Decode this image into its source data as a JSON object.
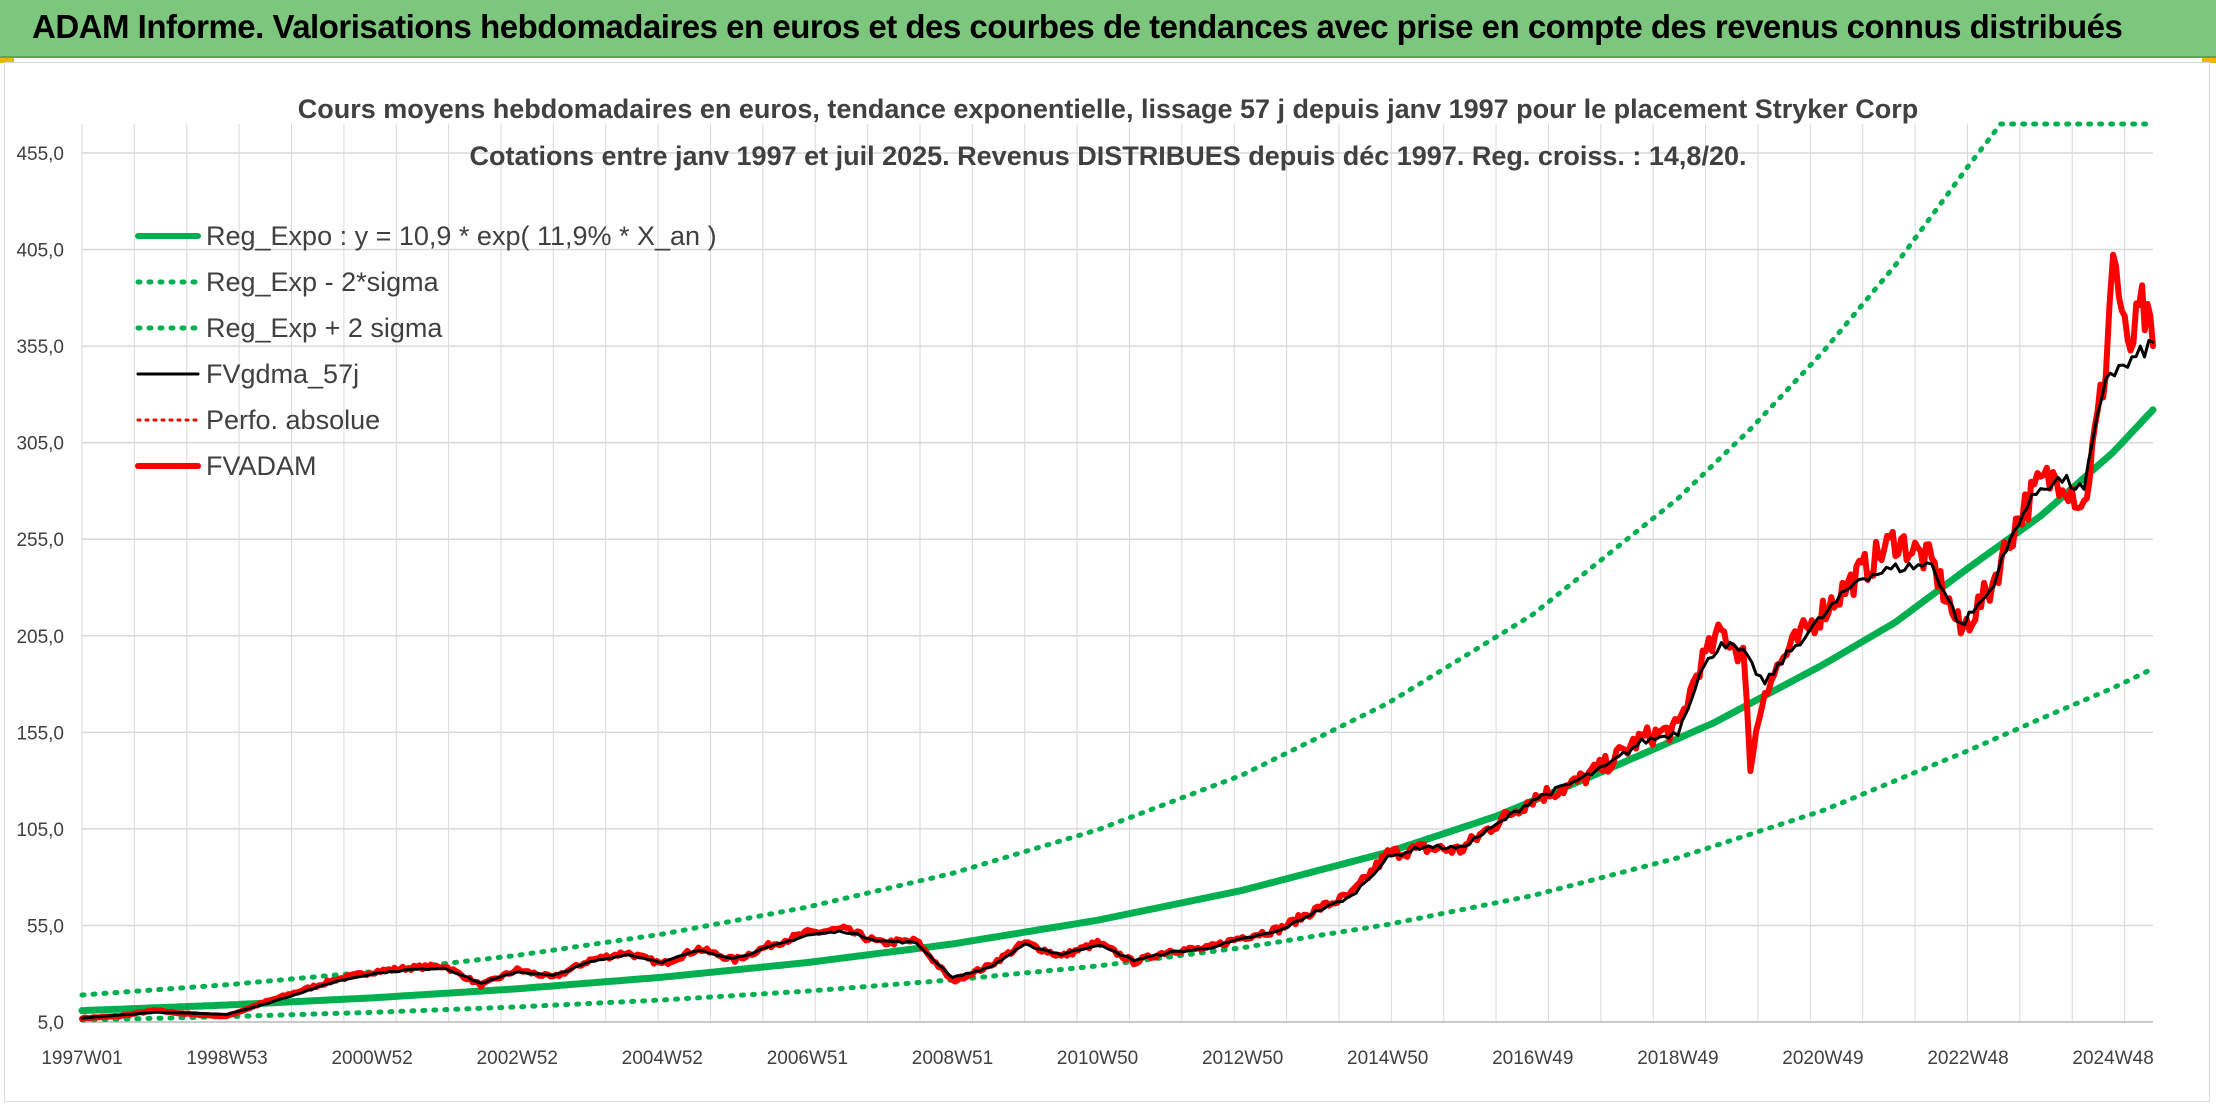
{
  "banner": {
    "title": "ADAM Informe. Valorisations hebdomadaires en euros et des courbes de tendances avec prise en compte des revenus connus distribués"
  },
  "colors": {
    "banner_bg": "#7dc67d",
    "trend_green": "#00b050",
    "moving_average": "#000000",
    "adam_red": "#ff0000",
    "perfo_red": "#ff0000",
    "grid": "#d9d9d9",
    "text": "#404040"
  },
  "chart_data": {
    "type": "line",
    "title_line1": "Cours moyens hebdomadaires en euros, tendance exponentielle, lissage 57 j depuis janv 1997 pour le placement Stryker Corp",
    "title_line2": "Cotations entre janv 1997 et juil 2025. Revenus DISTRIBUES depuis déc 1997. Reg. croiss. : 14,8/20.",
    "ylim": [
      5,
      470
    ],
    "y_ticks": [
      "5,0",
      "55,0",
      "105,0",
      "155,0",
      "205,0",
      "255,0",
      "305,0",
      "355,0",
      "405,0",
      "455,0"
    ],
    "y_tick_values": [
      5,
      55,
      105,
      155,
      205,
      255,
      305,
      355,
      405,
      455
    ],
    "x_range": [
      1997.0,
      2025.55
    ],
    "x_ticks": [
      "1997W01",
      "1998W53",
      "2000W52",
      "2002W52",
      "2004W52",
      "2006W51",
      "2008W51",
      "2010W50",
      "2012W50",
      "2014W50",
      "2016W49",
      "2018W49",
      "2020W49",
      "2022W48",
      "2024W48"
    ],
    "x_tick_values": [
      1997.0,
      1999.0,
      2001.0,
      2003.0,
      2005.0,
      2007.0,
      2009.0,
      2011.0,
      2013.0,
      2015.0,
      2017.0,
      2019.0,
      2021.0,
      2023.0,
      2025.0
    ],
    "grid": true,
    "legend_position": "top-left",
    "legend": [
      {
        "label": "Reg_Expo : y = 10,9 * exp( 11,9% *  X_an )",
        "style": "solid-green-thick"
      },
      {
        "label": "Reg_Exp - 2*sigma",
        "style": "dotted-green"
      },
      {
        "label": "Reg_Exp + 2 sigma",
        "style": "dotted-green"
      },
      {
        "label": "FVgdma_57j",
        "style": "solid-black"
      },
      {
        "label": "Perfo. absolue",
        "style": "dotted-red"
      },
      {
        "label": "FVADAM",
        "style": "solid-red-thick"
      }
    ],
    "series": [
      {
        "name": "Reg_Expo : y = 10,9 * exp( 11,9% *  X_an )",
        "x": [
          1997.0,
          1999.0,
          2001.0,
          2003.0,
          2005.0,
          2007.0,
          2009.0,
          2011.0,
          2013.0,
          2015.0,
          2016.5,
          2018.0,
          2019.5,
          2021.0,
          2022.0,
          2023.0,
          2024.0,
          2025.0,
          2025.55
        ],
        "y": [
          10.9,
          13.8,
          17.5,
          22.2,
          28.2,
          35.8,
          45.4,
          57.7,
          73.2,
          92.9,
          111.6,
          135.3,
          160.0,
          190.0,
          212.0,
          240.0,
          267.0,
          300.0,
          322.0
        ]
      },
      {
        "name": "Reg_Exp - 2*sigma",
        "x": [
          1997.0,
          1999.0,
          2001.0,
          2003.0,
          2005.0,
          2007.0,
          2009.0,
          2011.0,
          2013.0,
          2015.0,
          2017.0,
          2019.0,
          2021.0,
          2023.0,
          2024.0,
          2025.0,
          2025.55
        ],
        "y": [
          6.0,
          7.8,
          10.0,
          12.8,
          16.4,
          21.0,
          26.8,
          34.0,
          43.5,
          55.5,
          70.5,
          90.0,
          114.5,
          145.5,
          162.0,
          178.0,
          188.0
        ]
      },
      {
        "name": "Reg_Exp + 2 sigma",
        "x": [
          1997.0,
          1999.0,
          2001.0,
          2003.0,
          2005.0,
          2007.0,
          2009.0,
          2011.0,
          2013.0,
          2015.0,
          2017.0,
          2019.0,
          2020.0,
          2021.0,
          2022.0,
          2023.0,
          2023.45,
          2025.55
        ],
        "y": [
          19.0,
          24.3,
          31.0,
          39.5,
          50.5,
          64.5,
          82.0,
          104.5,
          133.0,
          170.0,
          216.0,
          276.0,
          312.0,
          352.0,
          397.0,
          448.0,
          470.0,
          470.0
        ]
      },
      {
        "name": "FVgdma_57j",
        "x": [
          1997.0,
          1997.5,
          1998.0,
          1998.5,
          1999.0,
          1999.5,
          2000.0,
          2000.5,
          2001.0,
          2001.5,
          2002.0,
          2002.5,
          2003.0,
          2003.5,
          2004.0,
          2004.5,
          2005.0,
          2005.5,
          2006.0,
          2006.5,
          2007.0,
          2007.5,
          2008.0,
          2008.5,
          2009.0,
          2009.5,
          2010.0,
          2010.5,
          2011.0,
          2011.5,
          2012.0,
          2012.5,
          2013.0,
          2013.5,
          2014.0,
          2014.5,
          2015.0,
          2015.5,
          2016.0,
          2016.5,
          2017.0,
          2017.5,
          2018.0,
          2018.5,
          2019.0,
          2019.3,
          2019.6,
          2019.9,
          2020.2,
          2020.5,
          2021.0,
          2021.5,
          2022.0,
          2022.5,
          2022.9,
          2023.3,
          2023.7,
          2024.0,
          2024.3,
          2024.6,
          2024.9,
          2025.2,
          2025.55
        ],
        "y": [
          7.0,
          8.5,
          10.0,
          9.5,
          9.0,
          14.0,
          20.0,
          26.0,
          30.0,
          32.0,
          33.0,
          25.0,
          31.0,
          29.0,
          36.0,
          40.0,
          36.0,
          42.0,
          38.0,
          44.0,
          50.0,
          52.0,
          47.0,
          46.0,
          28.0,
          33.0,
          45.0,
          40.0,
          45.0,
          37.0,
          41.0,
          43.0,
          48.0,
          52.0,
          62.0,
          70.0,
          90.0,
          96.0,
          95.0,
          107.0,
          120.0,
          128.0,
          137.0,
          150.0,
          155.0,
          185.0,
          202.0,
          196.0,
          180.0,
          195.0,
          215.0,
          235.0,
          240.0,
          242.0,
          210.0,
          228.0,
          265.0,
          282.0,
          286.0,
          280.0,
          340.0,
          345.0,
          357.0
        ]
      },
      {
        "name": "Perfo. absolue",
        "x": [],
        "y": []
      },
      {
        "name": "FVADAM",
        "x": [
          1997.0,
          1997.5,
          1998.0,
          1998.5,
          1999.0,
          1999.5,
          2000.0,
          2000.5,
          2001.0,
          2001.5,
          2002.0,
          2002.5,
          2003.0,
          2003.5,
          2004.0,
          2004.5,
          2005.0,
          2005.5,
          2006.0,
          2006.5,
          2007.0,
          2007.5,
          2008.0,
          2008.5,
          2009.0,
          2009.5,
          2010.0,
          2010.5,
          2011.0,
          2011.5,
          2012.0,
          2012.5,
          2013.0,
          2013.5,
          2014.0,
          2014.5,
          2015.0,
          2015.5,
          2016.0,
          2016.5,
          2017.0,
          2017.5,
          2018.0,
          2018.5,
          2019.0,
          2019.3,
          2019.6,
          2019.9,
          2020.0,
          2020.2,
          2020.5,
          2021.0,
          2021.5,
          2022.0,
          2022.5,
          2022.9,
          2023.3,
          2023.7,
          2024.0,
          2024.3,
          2024.6,
          2024.9,
          2025.0,
          2025.2,
          2025.4,
          2025.55
        ],
        "y": [
          7.0,
          8.0,
          11.0,
          9.0,
          8.0,
          15.0,
          21.0,
          27.0,
          31.0,
          33.0,
          34.0,
          24.0,
          32.0,
          28.0,
          37.0,
          41.0,
          35.0,
          43.0,
          37.0,
          45.0,
          51.0,
          53.0,
          46.0,
          47.0,
          26.0,
          34.0,
          46.0,
          39.0,
          46.0,
          36.0,
          42.0,
          43.0,
          49.0,
          53.0,
          63.0,
          71.0,
          92.0,
          95.0,
          94.0,
          108.0,
          121.0,
          127.0,
          138.0,
          152.0,
          157.0,
          190.0,
          207.0,
          195.0,
          139.0,
          178.0,
          196.0,
          218.0,
          237.0,
          255.0,
          243.0,
          207.0,
          229.0,
          267.0,
          284.0,
          288.0,
          272.0,
          345.0,
          405.0,
          350.0,
          375.0,
          355.0
        ]
      }
    ]
  }
}
